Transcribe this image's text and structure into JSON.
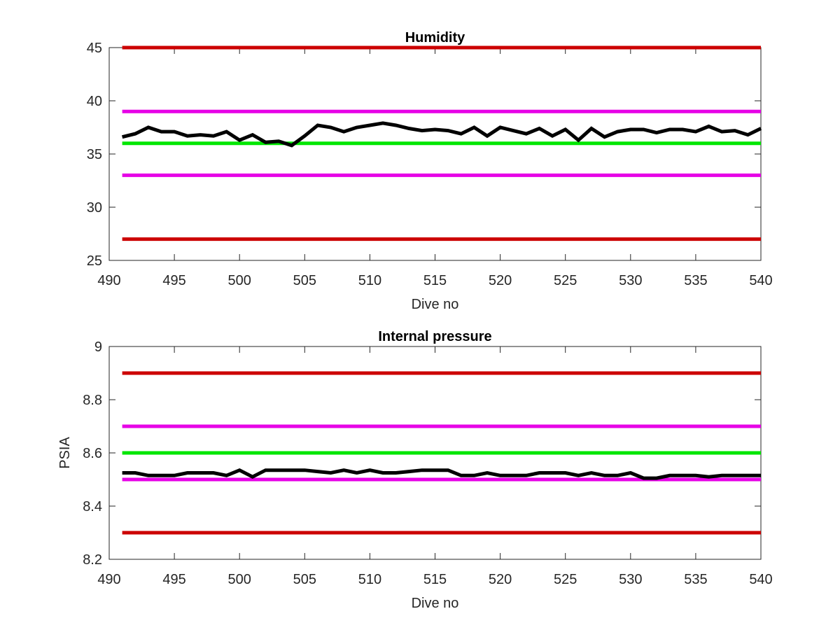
{
  "chart_data": [
    {
      "type": "line",
      "title": "Humidity",
      "xlabel": "Dive no",
      "ylabel": "",
      "xlim": [
        490,
        540
      ],
      "ylim": [
        25,
        45
      ],
      "xticks": [
        490,
        495,
        500,
        505,
        510,
        515,
        520,
        525,
        530,
        535,
        540
      ],
      "yticks": [
        25,
        30,
        35,
        40,
        45
      ],
      "grid": false,
      "reference_lines": [
        {
          "y": 45,
          "color": "#cc0000"
        },
        {
          "y": 39,
          "color": "#e600e6"
        },
        {
          "y": 36,
          "color": "#00e600"
        },
        {
          "y": 33,
          "color": "#e600e6"
        },
        {
          "y": 27,
          "color": "#cc0000"
        }
      ],
      "series": [
        {
          "color": "#000000",
          "x": [
            491,
            492,
            493,
            494,
            495,
            496,
            497,
            498,
            499,
            500,
            501,
            502,
            503,
            504,
            505,
            506,
            507,
            508,
            509,
            510,
            511,
            512,
            513,
            514,
            515,
            516,
            517,
            518,
            519,
            520,
            521,
            522,
            523,
            524,
            525,
            526,
            527,
            528,
            529,
            530,
            531,
            532,
            533,
            534,
            535,
            536,
            537,
            538,
            539,
            540
          ],
          "values": [
            36.6,
            36.9,
            37.5,
            37.1,
            37.1,
            36.7,
            36.8,
            36.7,
            37.1,
            36.3,
            36.8,
            36.1,
            36.2,
            35.8,
            36.7,
            37.7,
            37.5,
            37.1,
            37.5,
            37.7,
            37.9,
            37.7,
            37.4,
            37.2,
            37.3,
            37.2,
            36.9,
            37.5,
            36.7,
            37.5,
            37.2,
            36.9,
            37.4,
            36.7,
            37.3,
            36.3,
            37.4,
            36.6,
            37.1,
            37.3,
            37.3,
            37.0,
            37.3,
            37.3,
            37.1,
            37.6,
            37.1,
            37.2,
            36.8,
            37.4
          ]
        }
      ]
    },
    {
      "type": "line",
      "title": "Internal pressure",
      "xlabel": "Dive no",
      "ylabel": "PSIA",
      "xlim": [
        490,
        540
      ],
      "ylim": [
        8.2,
        9.0
      ],
      "xticks": [
        490,
        495,
        500,
        505,
        510,
        515,
        520,
        525,
        530,
        535,
        540
      ],
      "yticks": [
        8.2,
        8.4,
        8.6,
        8.8,
        9
      ],
      "grid": false,
      "reference_lines": [
        {
          "y": 8.9,
          "color": "#cc0000"
        },
        {
          "y": 8.7,
          "color": "#e600e6"
        },
        {
          "y": 8.6,
          "color": "#00e600"
        },
        {
          "y": 8.5,
          "color": "#e600e6"
        },
        {
          "y": 8.3,
          "color": "#cc0000"
        }
      ],
      "series": [
        {
          "color": "#000000",
          "x": [
            491,
            492,
            493,
            494,
            495,
            496,
            497,
            498,
            499,
            500,
            501,
            502,
            503,
            504,
            505,
            506,
            507,
            508,
            509,
            510,
            511,
            512,
            513,
            514,
            515,
            516,
            517,
            518,
            519,
            520,
            521,
            522,
            523,
            524,
            525,
            526,
            527,
            528,
            529,
            530,
            531,
            532,
            533,
            534,
            535,
            536,
            537,
            538,
            539,
            540
          ],
          "values": [
            8.525,
            8.525,
            8.515,
            8.515,
            8.515,
            8.525,
            8.525,
            8.525,
            8.515,
            8.535,
            8.51,
            8.535,
            8.535,
            8.535,
            8.535,
            8.53,
            8.525,
            8.535,
            8.525,
            8.535,
            8.525,
            8.525,
            8.53,
            8.535,
            8.535,
            8.535,
            8.515,
            8.515,
            8.525,
            8.515,
            8.515,
            8.515,
            8.525,
            8.525,
            8.525,
            8.515,
            8.525,
            8.515,
            8.515,
            8.525,
            8.505,
            8.505,
            8.515,
            8.515,
            8.515,
            8.51,
            8.515,
            8.515,
            8.515,
            8.515
          ]
        }
      ]
    }
  ]
}
